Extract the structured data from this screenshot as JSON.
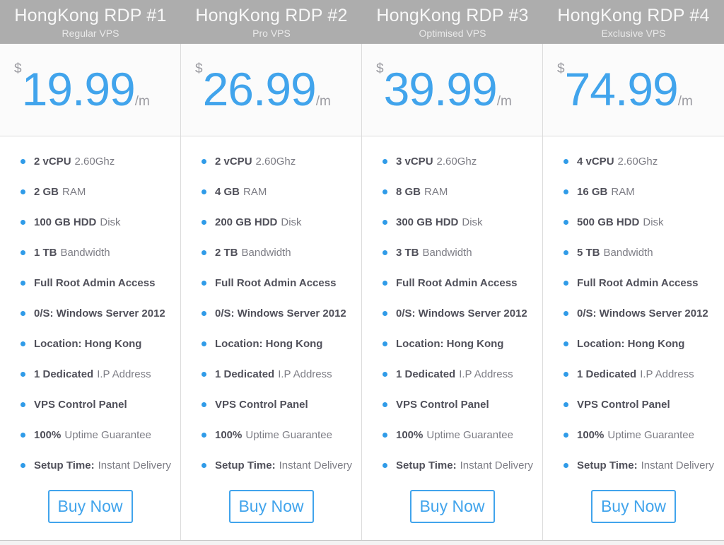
{
  "colors": {
    "accent": "#41a4ec",
    "bullet": "#2f9be8",
    "header_bg": "#adadad",
    "header_title": "#f8f8f8",
    "header_subtitle": "#e9e9e9",
    "price_bg": "#fbfbfb",
    "divider": "#dcdcdc",
    "border_dark": "#c8c8c8",
    "muted": "#9b9ba1",
    "text_bold": "#50505a",
    "text_normal": "#7d7d85"
  },
  "plans": [
    {
      "title": "HongKong RDP #1",
      "subtitle": "Regular VPS",
      "currency": "$",
      "price": "19.99",
      "period": "/m",
      "buy_label": "Buy Now",
      "features": [
        {
          "bold": "2 vCPU",
          "normal": "2.60Ghz"
        },
        {
          "bold": "2 GB",
          "normal": "RAM"
        },
        {
          "bold": "100 GB HDD",
          "normal": "Disk"
        },
        {
          "bold": "1 TB",
          "normal": "Bandwidth"
        },
        {
          "bold": "Full Root Admin Access",
          "normal": ""
        },
        {
          "bold": "0/S: Windows Server 2012",
          "normal": ""
        },
        {
          "bold": "Location: Hong Kong",
          "normal": ""
        },
        {
          "bold": "1 Dedicated",
          "normal": "I.P Address"
        },
        {
          "bold": "VPS Control Panel",
          "normal": ""
        },
        {
          "bold": "100%",
          "normal": "Uptime Guarantee"
        },
        {
          "bold": "Setup Time:",
          "normal": "Instant Delivery"
        }
      ]
    },
    {
      "title": "HongKong RDP #2",
      "subtitle": "Pro VPS",
      "currency": "$",
      "price": "26.99",
      "period": "/m",
      "buy_label": "Buy Now",
      "features": [
        {
          "bold": "2 vCPU",
          "normal": "2.60Ghz"
        },
        {
          "bold": "4 GB",
          "normal": "RAM"
        },
        {
          "bold": "200 GB HDD",
          "normal": "Disk"
        },
        {
          "bold": "2 TB",
          "normal": "Bandwidth"
        },
        {
          "bold": "Full Root Admin Access",
          "normal": ""
        },
        {
          "bold": "0/S: Windows Server 2012",
          "normal": ""
        },
        {
          "bold": "Location: Hong Kong",
          "normal": ""
        },
        {
          "bold": "1 Dedicated",
          "normal": "I.P Address"
        },
        {
          "bold": "VPS Control Panel",
          "normal": ""
        },
        {
          "bold": "100%",
          "normal": "Uptime Guarantee"
        },
        {
          "bold": "Setup Time:",
          "normal": "Instant Delivery"
        }
      ]
    },
    {
      "title": "HongKong RDP #3",
      "subtitle": "Optimised VPS",
      "currency": "$",
      "price": "39.99",
      "period": "/m",
      "buy_label": "Buy Now",
      "features": [
        {
          "bold": "3 vCPU",
          "normal": "2.60Ghz"
        },
        {
          "bold": "8 GB",
          "normal": "RAM"
        },
        {
          "bold": "300 GB HDD",
          "normal": "Disk"
        },
        {
          "bold": "3 TB",
          "normal": "Bandwidth"
        },
        {
          "bold": "Full Root Admin Access",
          "normal": ""
        },
        {
          "bold": "0/S: Windows Server 2012",
          "normal": ""
        },
        {
          "bold": "Location: Hong Kong",
          "normal": ""
        },
        {
          "bold": "1 Dedicated",
          "normal": "I.P Address"
        },
        {
          "bold": "VPS Control Panel",
          "normal": ""
        },
        {
          "bold": "100%",
          "normal": "Uptime Guarantee"
        },
        {
          "bold": "Setup Time:",
          "normal": "Instant Delivery"
        }
      ]
    },
    {
      "title": "HongKong RDP #4",
      "subtitle": "Exclusive VPS",
      "currency": "$",
      "price": "74.99",
      "period": "/m",
      "buy_label": "Buy Now",
      "features": [
        {
          "bold": "4 vCPU",
          "normal": "2.60Ghz"
        },
        {
          "bold": "16 GB",
          "normal": "RAM"
        },
        {
          "bold": "500 GB HDD",
          "normal": "Disk"
        },
        {
          "bold": "5 TB",
          "normal": "Bandwidth"
        },
        {
          "bold": "Full Root Admin Access",
          "normal": ""
        },
        {
          "bold": "0/S: Windows Server 2012",
          "normal": ""
        },
        {
          "bold": "Location: Hong Kong",
          "normal": ""
        },
        {
          "bold": "1 Dedicated",
          "normal": "I.P Address"
        },
        {
          "bold": "VPS Control Panel",
          "normal": ""
        },
        {
          "bold": "100%",
          "normal": "Uptime Guarantee"
        },
        {
          "bold": "Setup Time:",
          "normal": "Instant Delivery"
        }
      ]
    }
  ]
}
